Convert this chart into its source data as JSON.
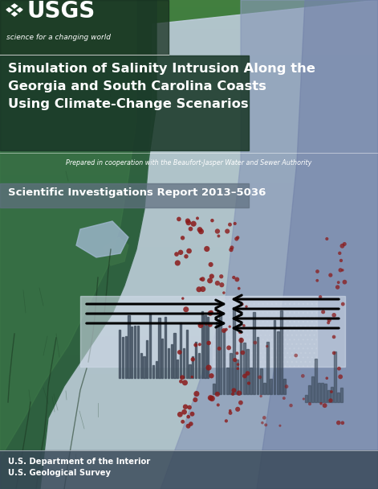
{
  "title_line1": "Simulation of Salinity Intrusion Along the",
  "title_line2": "Georgia and South Carolina Coasts",
  "title_line3": "Using Climate-Change Scenarios",
  "subtitle": "Prepared in cooperation with the Beaufort-Jasper Water and Sewer Authority",
  "report_label": "Scientific Investigations Report 2013–5036",
  "footer_line1": "U.S. Department of the Interior",
  "footer_line2": "U.S. Geological Survey",
  "usgs_text": "USGS",
  "usgs_sub": "science for a changing world",
  "fig_width": 4.71,
  "fig_height": 6.08,
  "dpi": 100,
  "land_color": "#3a7040",
  "land_dark": "#1e4a28",
  "ocean_color": "#c0cede",
  "ocean_deep": "#8898b8",
  "title_bg": "#1e3d28",
  "report_bg": "#607080",
  "footer_bg": "#384858",
  "dot_color": "#8b1a1a",
  "bar_color": "#404858",
  "arrow_bg": "#d0dae8"
}
